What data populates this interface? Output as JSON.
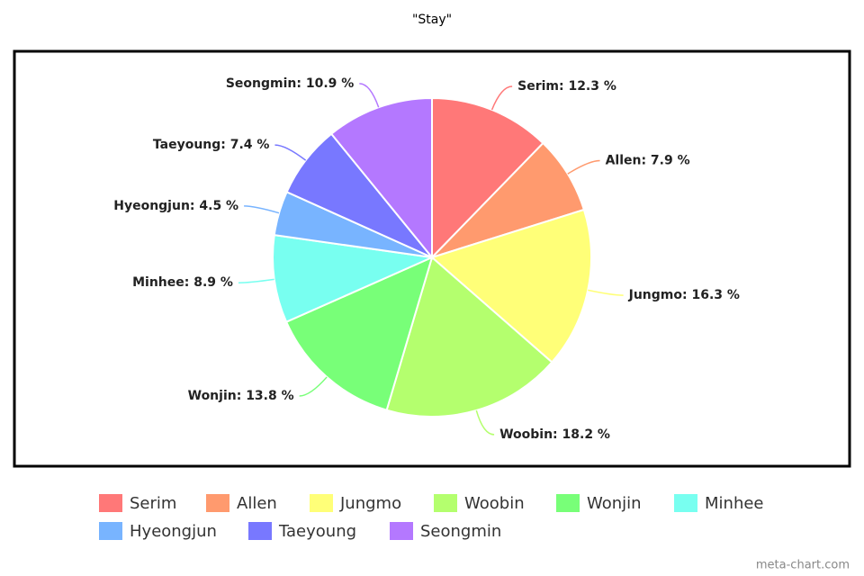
{
  "chart_data": {
    "type": "pie",
    "title": "\"Stay\"",
    "categories": [
      "Serim",
      "Allen",
      "Jungmo",
      "Woobin",
      "Wonjin",
      "Minhee",
      "Hyeongjun",
      "Taeyoung",
      "Seongmin"
    ],
    "values": [
      12.3,
      7.9,
      16.3,
      18.2,
      13.8,
      8.9,
      4.5,
      7.4,
      10.9
    ],
    "value_labels": [
      "Serim: 12.3 %",
      "Allen: 7.9 %",
      "Jungmo: 16.3 %",
      "Woobin: 18.2 %",
      "Wonjin: 13.8 %",
      "Minhee: 8.9 %",
      "Hyeongjun: 4.5 %",
      "Taeyoung: 7.4 %",
      "Seongmin: 10.9 %"
    ],
    "colors": [
      "#ff7878",
      "#ff9a6e",
      "#ffff78",
      "#b4ff6e",
      "#78ff78",
      "#78fff0",
      "#78b4ff",
      "#7878ff",
      "#b478ff"
    ],
    "legend": "bottom",
    "watermark": "meta-chart.com"
  }
}
